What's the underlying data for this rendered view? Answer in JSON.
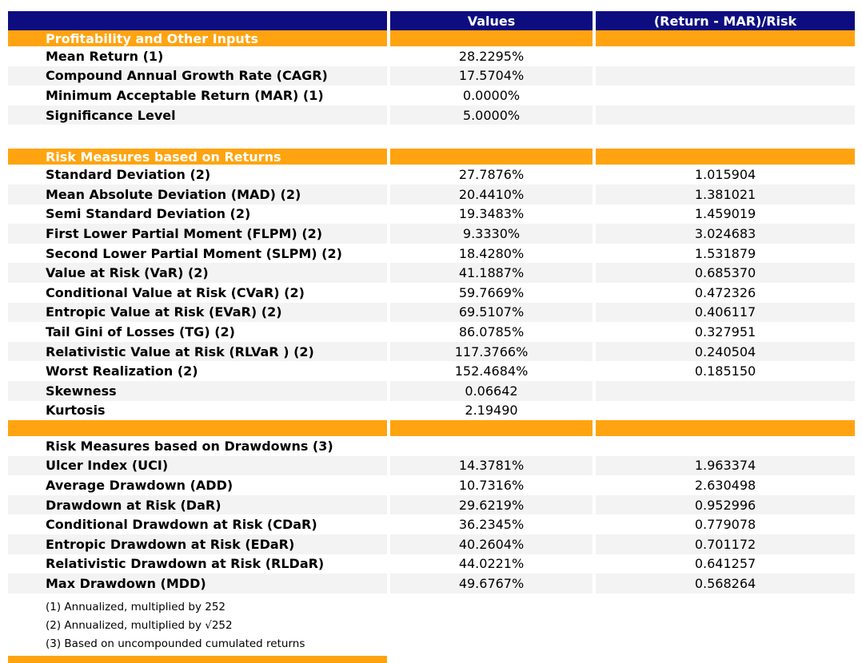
{
  "colors": {
    "header_navy": "#0d0d80",
    "section_orange": "#ffa410",
    "stripe_gray": "#f3f3f3",
    "text": "#000000"
  },
  "table": {
    "column_headers": [
      "",
      "Values",
      "(Return - MAR)/Risk"
    ],
    "sections": [
      {
        "id": "profitability",
        "bar_label": "Profitability and Other Inputs",
        "title_row": null,
        "gap_before": false,
        "rows": [
          {
            "label": "Mean Return (1)",
            "value": "28.2295%",
            "ratio": ""
          },
          {
            "label": "Compound Annual Growth Rate (CAGR)",
            "value": "17.5704%",
            "ratio": ""
          },
          {
            "label": "Minimum Acceptable Return (MAR) (1)",
            "value": "0.0000%",
            "ratio": ""
          },
          {
            "label": "Significance Level",
            "value": "5.0000%",
            "ratio": ""
          }
        ]
      },
      {
        "id": "risk-returns",
        "bar_label": "Risk Measures based on Returns",
        "title_row": null,
        "gap_before": true,
        "rows": [
          {
            "label": "Standard Deviation (2)",
            "value": "27.7876%",
            "ratio": "1.015904"
          },
          {
            "label": "Mean Absolute Deviation (MAD) (2)",
            "value": "20.4410%",
            "ratio": "1.381021"
          },
          {
            "label": "Semi Standard Deviation (2)",
            "value": "19.3483%",
            "ratio": "1.459019"
          },
          {
            "label": "First Lower Partial Moment (FLPM) (2)",
            "value": "9.3330%",
            "ratio": "3.024683"
          },
          {
            "label": "Second Lower Partial Moment (SLPM) (2)",
            "value": "18.4280%",
            "ratio": "1.531879"
          },
          {
            "label": "Value at Risk (VaR) (2)",
            "value": "41.1887%",
            "ratio": "0.685370"
          },
          {
            "label": "Conditional Value at Risk (CVaR) (2)",
            "value": "59.7669%",
            "ratio": "0.472326"
          },
          {
            "label": "Entropic Value at Risk (EVaR) (2)",
            "value": "69.5107%",
            "ratio": "0.406117"
          },
          {
            "label": "Tail Gini of Losses (TG) (2)",
            "value": "86.0785%",
            "ratio": "0.327951"
          },
          {
            "label": "Relativistic Value at Risk (RLVaR ) (2)",
            "value": "117.3766%",
            "ratio": "0.240504"
          },
          {
            "label": "Worst Realization (2)",
            "value": "152.4684%",
            "ratio": "0.185150"
          },
          {
            "label": "Skewness",
            "value": "0.06642",
            "ratio": ""
          },
          {
            "label": "Kurtosis",
            "value": "2.19490",
            "ratio": ""
          }
        ]
      },
      {
        "id": "risk-drawdowns",
        "bar_label": "",
        "title_row": "Risk Measures based on Drawdowns (3)",
        "gap_before": false,
        "rows": [
          {
            "label": "Ulcer Index (UCI)",
            "value": "14.3781%",
            "ratio": "1.963374"
          },
          {
            "label": "Average Drawdown (ADD)",
            "value": "10.7316%",
            "ratio": "2.630498"
          },
          {
            "label": "Drawdown at Risk (DaR)",
            "value": "29.6219%",
            "ratio": "0.952996"
          },
          {
            "label": "Conditional Drawdown at Risk (CDaR)",
            "value": "36.2345%",
            "ratio": "0.779078"
          },
          {
            "label": "Entropic Drawdown at Risk (EDaR)",
            "value": "40.2604%",
            "ratio": "0.701172"
          },
          {
            "label": "Relativistic Drawdown at Risk (RLDaR)",
            "value": "44.0221%",
            "ratio": "0.641257"
          },
          {
            "label": "Max Drawdown (MDD)",
            "value": "49.6767%",
            "ratio": "0.568264"
          }
        ]
      }
    ]
  },
  "footnotes": [
    "(1) Annualized, multiplied by 252",
    "(2) Annualized, multiplied by √252",
    "(3) Based on uncompounded cumulated returns"
  ]
}
